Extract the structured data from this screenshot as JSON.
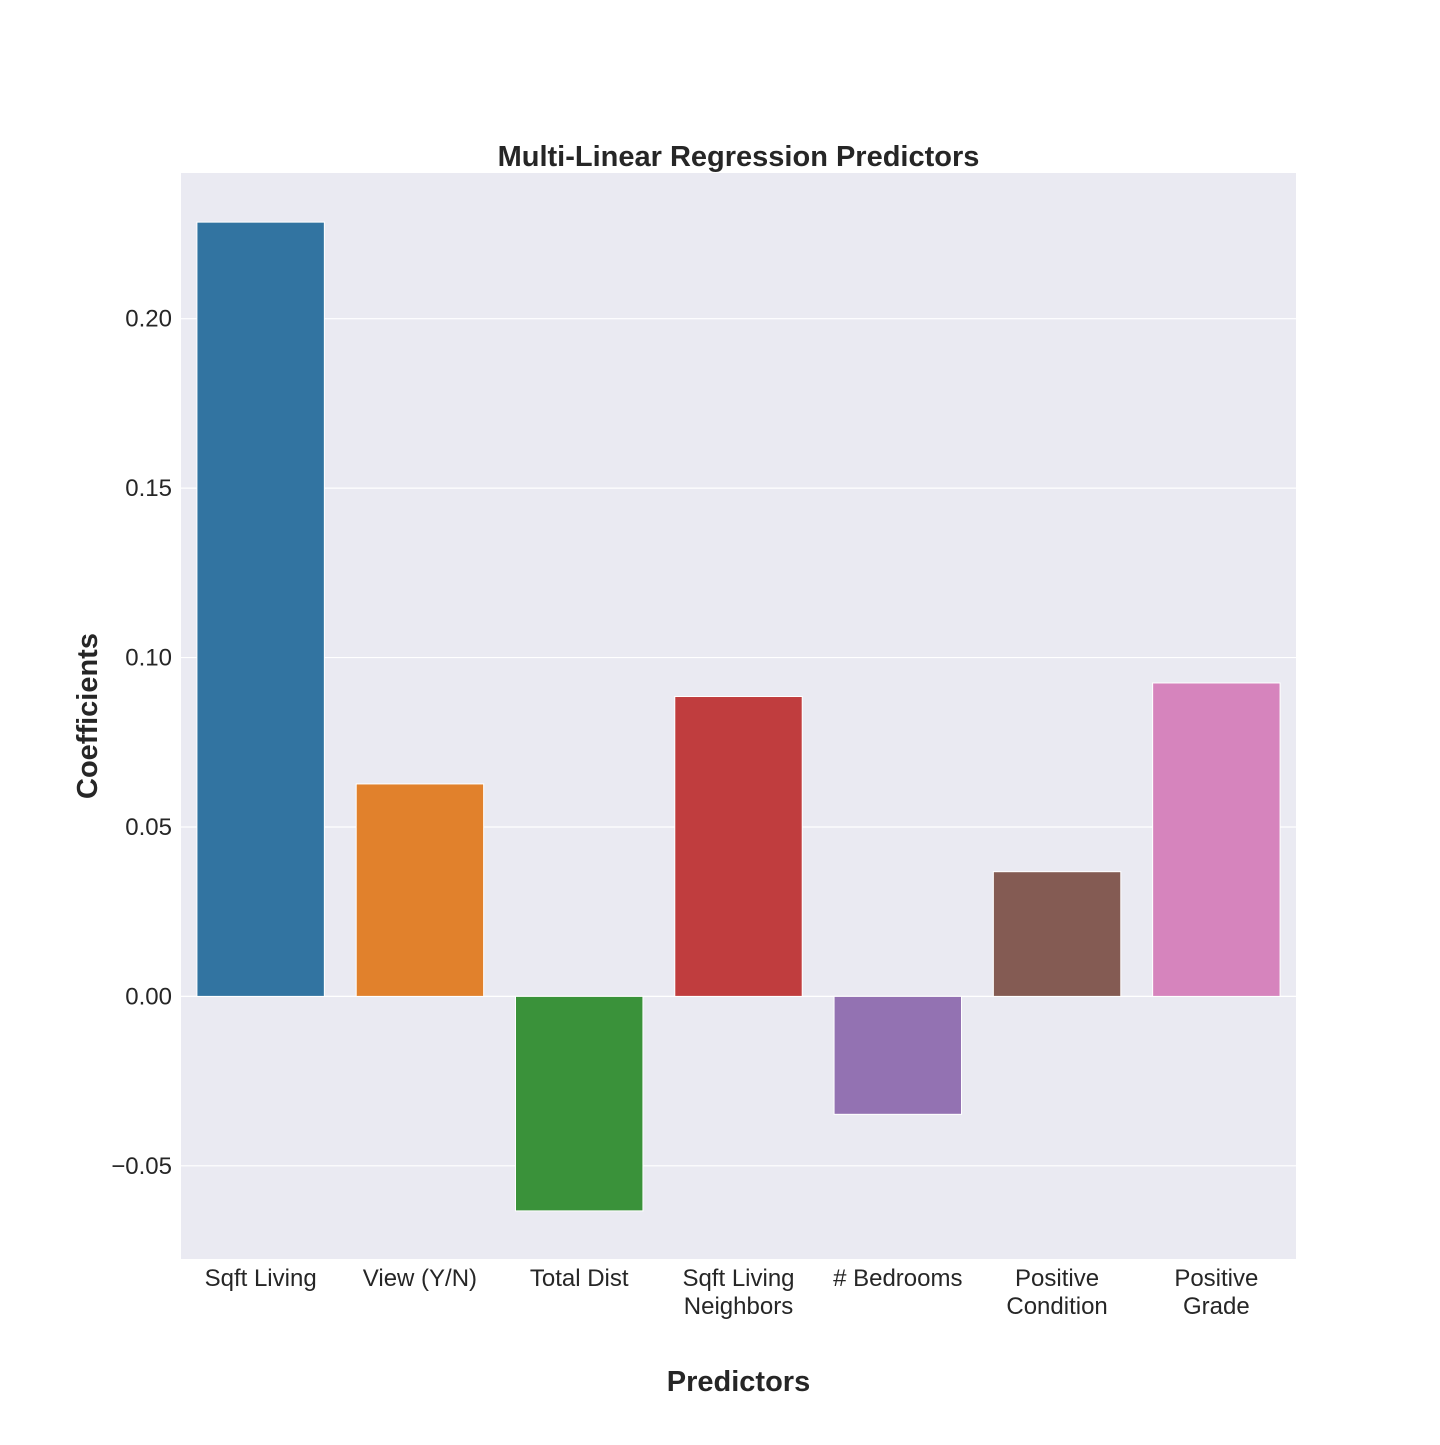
{
  "chart_data": {
    "type": "bar",
    "title": "Multi-Linear Regression Predictors",
    "xlabel": "Predictors",
    "ylabel": "Coefficients",
    "categories": [
      [
        "Sqft Living"
      ],
      [
        "View (Y/N)"
      ],
      [
        "Total Dist"
      ],
      [
        "Sqft Living",
        "Neighbors"
      ],
      [
        "# Bedrooms"
      ],
      [
        "Positive",
        "Condition"
      ],
      [
        "Positive",
        "Grade"
      ]
    ],
    "values": [
      0.2285,
      0.0627,
      -0.0633,
      0.0885,
      -0.0348,
      0.0368,
      0.0925
    ],
    "colors": [
      "#3274a1",
      "#e1812c",
      "#3a923a",
      "#c03d3e",
      "#9372b2",
      "#845b53",
      "#d684bd"
    ],
    "ylim": [
      -0.0775,
      0.243
    ],
    "yticks": [
      -0.05,
      0.0,
      0.05,
      0.1,
      0.15,
      0.2
    ],
    "ytick_labels": [
      "−0.05",
      "0.00",
      "0.05",
      "0.10",
      "0.15",
      "0.20"
    ],
    "grid": true,
    "plot_background": "#eaeaf2",
    "grid_color": "#ffffff"
  }
}
